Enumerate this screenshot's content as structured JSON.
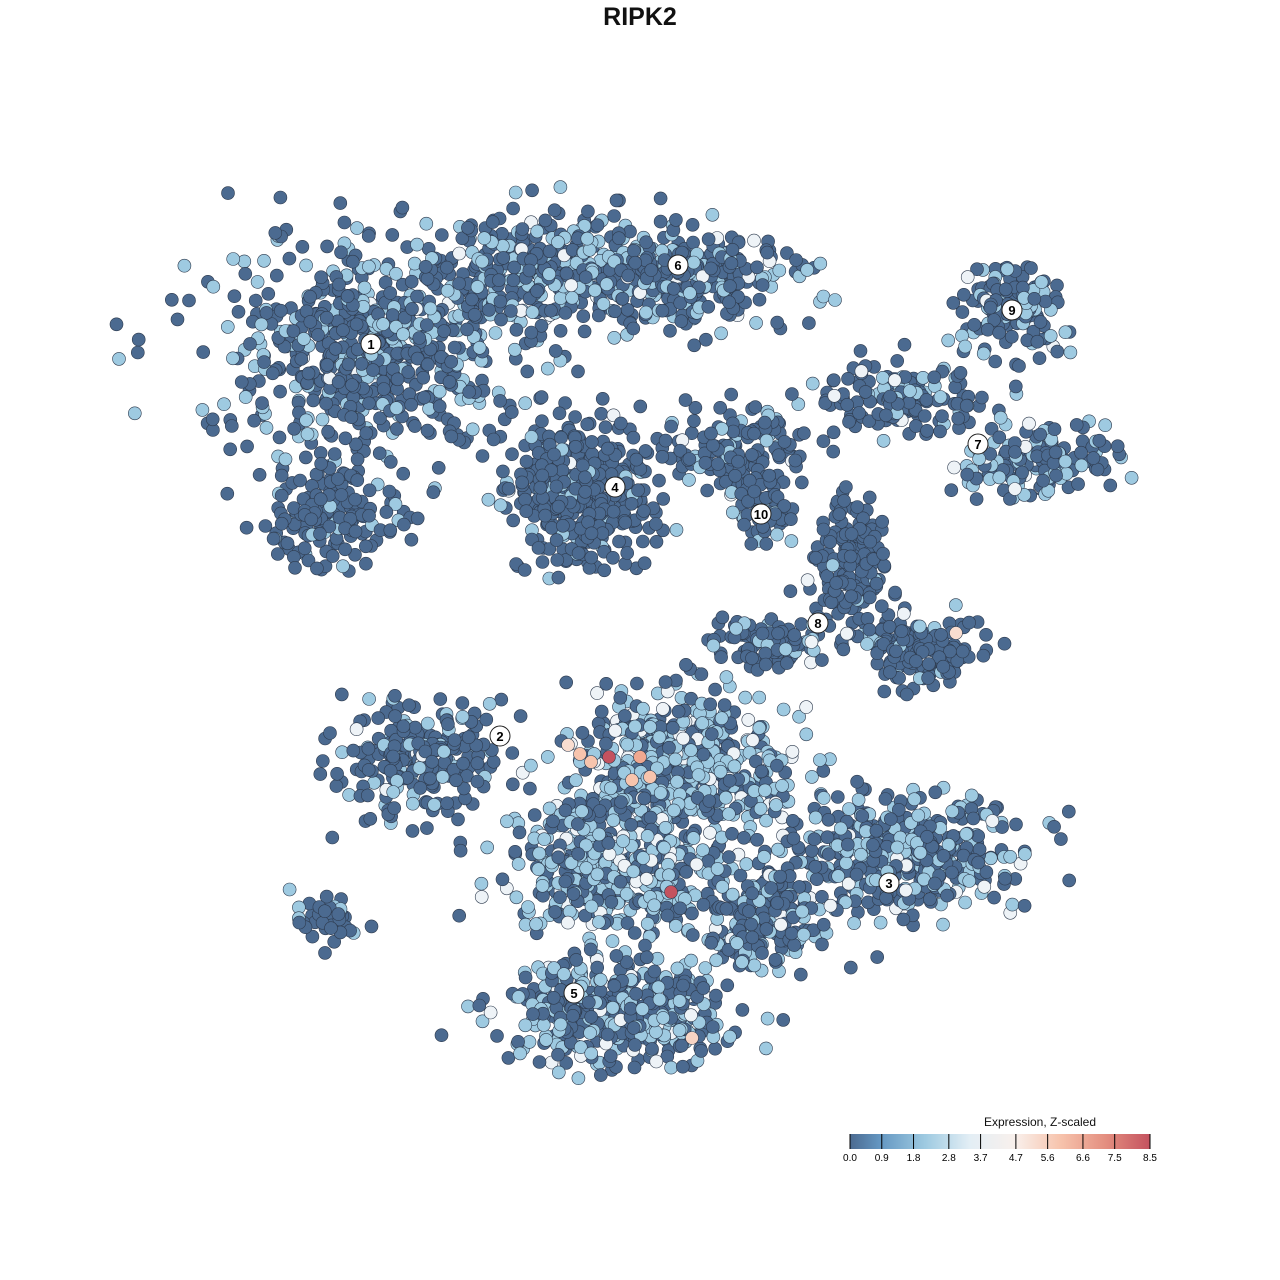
{
  "chart_data": {
    "type": "scatter",
    "title": "RIPK2",
    "xlabel": "",
    "ylabel": "",
    "grid": false,
    "axes_visible": false,
    "colorbar": {
      "title": "Expression, Z-scaled",
      "ticks": [
        "0.0",
        "0.9",
        "1.8",
        "2.8",
        "3.7",
        "4.7",
        "5.6",
        "6.6",
        "7.5",
        "8.5"
      ],
      "range": [
        0.0,
        8.5
      ],
      "colors": [
        "#4b6a90",
        "#6497c2",
        "#9ecae1",
        "#e3eef5",
        "#f9f0ec",
        "#f7c4ad",
        "#e48f80",
        "#c4525f"
      ],
      "placement": "bottom-right"
    },
    "clusters": [
      {
        "label": "1",
        "x": -26.9,
        "y": 29.6
      },
      {
        "label": "2",
        "x": -14.0,
        "y": -9.6
      },
      {
        "label": "3",
        "x": 24.9,
        "y": -24.3
      },
      {
        "label": "4",
        "x": -2.5,
        "y": 15.3
      },
      {
        "label": "5",
        "x": -6.6,
        "y": -35.3
      },
      {
        "label": "6",
        "x": 3.8,
        "y": 37.5
      },
      {
        "label": "7",
        "x": 33.8,
        "y": 19.6
      },
      {
        "label": "8",
        "x": 17.8,
        "y": 1.7
      },
      {
        "label": "9",
        "x": 37.2,
        "y": 33.0
      },
      {
        "label": "10",
        "x": 12.1,
        "y": 12.6
      }
    ]
  }
}
